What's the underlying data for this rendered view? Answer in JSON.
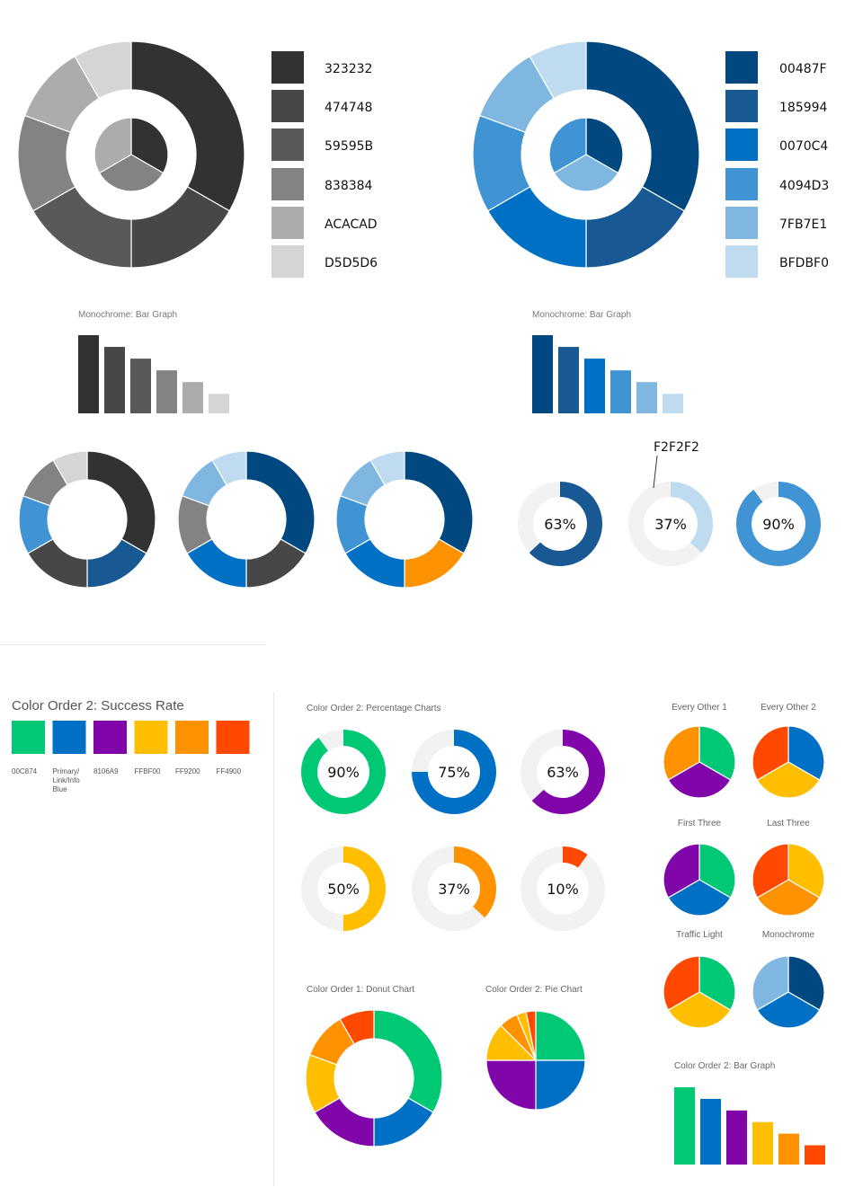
{
  "colors": {
    "c323232": "#323232",
    "c474748": "#474748",
    "c59595B": "#59595B",
    "c838384": "#838384",
    "cACACAD": "#ACACAD",
    "cD5D5D6": "#D5D5D6",
    "c00487F": "#00487F",
    "c185994": "#185994",
    "c0070C4": "#0070C4",
    "c4094D3": "#4094D3",
    "c7FB7E1": "#7FB7E1",
    "cBFDBF0": "#BFDBF0",
    "cF2F2F2": "#F2F2F2",
    "c00C874": "#00C874",
    "c8106A9": "#8106A9",
    "cFFBF00": "#FFBF00",
    "cFF9200": "#FF9200",
    "cFF4900": "#FF4900",
    "orange": "#FF9200"
  },
  "legends": {
    "mono": [
      "323232",
      "474748",
      "59595B",
      "838384",
      "ACACAD",
      "D5D5D6"
    ],
    "blue": [
      "00487F",
      "185994",
      "0070C4",
      "4094D3",
      "7FB7E1",
      "BFDBF0"
    ]
  },
  "labels": {
    "mono_bar": "Monochrome: Bar Graph",
    "blue_bar": "Monochrome: Bar Graph",
    "f2_callout": "F2F2F2",
    "success_title": "Color Order 2: Success Rate",
    "swatches": [
      "00C874",
      "Primary/\nLink/Info\nBlue",
      "8106A9",
      "FFBF00",
      "FF9200",
      "FF4900"
    ],
    "pct_title": "Color Order 2: Percentage Charts",
    "donut_title": "Color Order 1: Donut Chart",
    "pie_title": "Color Order 2: Pie Chart",
    "every_other_1": "Every Other 1",
    "every_other_2": "Every Other 2",
    "first_three": "First Three",
    "last_three": "Last Three",
    "traffic_light": "Traffic Light",
    "monochrome": "Monochrome",
    "bar_title": "Color Order 2: Bar Graph"
  },
  "chart_data": [
    {
      "id": "big-donut-mono",
      "type": "pie",
      "outer": [
        {
          "v": 33.3,
          "c": "#323232"
        },
        {
          "v": 16.7,
          "c": "#474748"
        },
        {
          "v": 16.7,
          "c": "#59595B"
        },
        {
          "v": 13.9,
          "c": "#838384"
        },
        {
          "v": 11.1,
          "c": "#ACACAD"
        },
        {
          "v": 8.3,
          "c": "#D5D5D6"
        }
      ],
      "inner": [
        {
          "v": 33.3,
          "c": "#323232"
        },
        {
          "v": 33.3,
          "c": "#838384"
        },
        {
          "v": 33.3,
          "c": "#ACACAD"
        }
      ]
    },
    {
      "id": "big-donut-blue",
      "type": "pie",
      "outer": [
        {
          "v": 33.3,
          "c": "#00487F"
        },
        {
          "v": 16.7,
          "c": "#185994"
        },
        {
          "v": 16.7,
          "c": "#0070C4"
        },
        {
          "v": 13.9,
          "c": "#4094D3"
        },
        {
          "v": 11.1,
          "c": "#7FB7E1"
        },
        {
          "v": 8.3,
          "c": "#BFDBF0"
        }
      ],
      "inner": [
        {
          "v": 33.3,
          "c": "#00487F"
        },
        {
          "v": 33.3,
          "c": "#7FB7E1"
        },
        {
          "v": 33.3,
          "c": "#4094D3"
        }
      ]
    },
    {
      "id": "mono-bar",
      "type": "bar",
      "title": "Monochrome: Bar Graph",
      "values": [
        6,
        5.1,
        4.2,
        3.3,
        2.4,
        1.5
      ],
      "colors": [
        "#323232",
        "#474748",
        "#59595B",
        "#838384",
        "#ACACAD",
        "#D5D5D6"
      ]
    },
    {
      "id": "blue-bar",
      "type": "bar",
      "title": "Monochrome: Bar Graph",
      "values": [
        6,
        5.1,
        4.2,
        3.3,
        2.4,
        1.5
      ],
      "colors": [
        "#00487F",
        "#185994",
        "#0070C4",
        "#4094D3",
        "#7FB7E1",
        "#BFDBF0"
      ]
    },
    {
      "id": "mid-donut-1",
      "type": "pie",
      "slices": [
        {
          "v": 33.3,
          "c": "#323232"
        },
        {
          "v": 16.7,
          "c": "#185994"
        },
        {
          "v": 16.7,
          "c": "#474748"
        },
        {
          "v": 13.9,
          "c": "#4094D3"
        },
        {
          "v": 11.1,
          "c": "#838384"
        },
        {
          "v": 8.3,
          "c": "#D5D5D6"
        }
      ]
    },
    {
      "id": "mid-donut-2",
      "type": "pie",
      "slices": [
        {
          "v": 33.3,
          "c": "#00487F"
        },
        {
          "v": 16.7,
          "c": "#474748"
        },
        {
          "v": 16.7,
          "c": "#0070C4"
        },
        {
          "v": 13.9,
          "c": "#838384"
        },
        {
          "v": 11.1,
          "c": "#7FB7E1"
        },
        {
          "v": 8.3,
          "c": "#BFDBF0"
        }
      ]
    },
    {
      "id": "mid-donut-3",
      "type": "pie",
      "slices": [
        {
          "v": 33.3,
          "c": "#00487F"
        },
        {
          "v": 16.7,
          "c": "#FF9200"
        },
        {
          "v": 16.7,
          "c": "#0070C4"
        },
        {
          "v": 13.9,
          "c": "#4094D3"
        },
        {
          "v": 11.1,
          "c": "#7FB7E1"
        },
        {
          "v": 8.3,
          "c": "#BFDBF0"
        }
      ]
    },
    {
      "id": "pct-blue-63",
      "type": "pie",
      "percent": 63,
      "label": "63%",
      "color": "#185994"
    },
    {
      "id": "pct-blue-37",
      "type": "pie",
      "percent": 37,
      "label": "37%",
      "color": "#BFDBF0"
    },
    {
      "id": "pct-blue-90",
      "type": "pie",
      "percent": 90,
      "label": "90%",
      "color": "#4094D3"
    },
    {
      "id": "pct-90",
      "type": "pie",
      "percent": 90,
      "label": "90%",
      "color": "#00C874"
    },
    {
      "id": "pct-75",
      "type": "pie",
      "percent": 75,
      "label": "75%",
      "color": "#0070C4"
    },
    {
      "id": "pct-63",
      "type": "pie",
      "percent": 63,
      "label": "63%",
      "color": "#8106A9"
    },
    {
      "id": "pct-50",
      "type": "pie",
      "percent": 50,
      "label": "50%",
      "color": "#FFBF00"
    },
    {
      "id": "pct-37",
      "type": "pie",
      "percent": 37,
      "label": "37%",
      "color": "#FF9200"
    },
    {
      "id": "pct-10",
      "type": "pie",
      "percent": 10,
      "label": "10%",
      "color": "#FF4900"
    },
    {
      "id": "donut-order1",
      "type": "pie",
      "title": "Color Order 1: Donut Chart",
      "slices": [
        {
          "v": 33.3,
          "c": "#00C874"
        },
        {
          "v": 16.7,
          "c": "#0070C4"
        },
        {
          "v": 16.7,
          "c": "#8106A9"
        },
        {
          "v": 13.9,
          "c": "#FFBF00"
        },
        {
          "v": 11.1,
          "c": "#FF9200"
        },
        {
          "v": 8.3,
          "c": "#FF4900"
        }
      ]
    },
    {
      "id": "pie-order2",
      "type": "pie",
      "title": "Color Order 2: Pie Chart",
      "slices": [
        {
          "v": 25,
          "c": "#00C874"
        },
        {
          "v": 25,
          "c": "#0070C4"
        },
        {
          "v": 25,
          "c": "#8106A9"
        },
        {
          "v": 12.5,
          "c": "#FFBF00"
        },
        {
          "v": 6.25,
          "c": "#FF9200"
        },
        {
          "v": 3.125,
          "c": "#FFBF00"
        },
        {
          "v": 3.125,
          "c": "#FF4900"
        }
      ]
    },
    {
      "id": "pie-every-other-1",
      "type": "pie",
      "title": "Every Other 1",
      "slices": [
        {
          "v": 1,
          "c": "#00C874"
        },
        {
          "v": 1,
          "c": "#8106A9"
        },
        {
          "v": 1,
          "c": "#FF9200"
        }
      ]
    },
    {
      "id": "pie-every-other-2",
      "type": "pie",
      "title": "Every Other 2",
      "slices": [
        {
          "v": 1,
          "c": "#0070C4"
        },
        {
          "v": 1,
          "c": "#FFBF00"
        },
        {
          "v": 1,
          "c": "#FF4900"
        }
      ]
    },
    {
      "id": "pie-first-three",
      "type": "pie",
      "title": "First Three",
      "slices": [
        {
          "v": 1,
          "c": "#00C874"
        },
        {
          "v": 1,
          "c": "#0070C4"
        },
        {
          "v": 1,
          "c": "#8106A9"
        }
      ]
    },
    {
      "id": "pie-last-three",
      "type": "pie",
      "title": "Last Three",
      "slices": [
        {
          "v": 1,
          "c": "#FFBF00"
        },
        {
          "v": 1,
          "c": "#FF9200"
        },
        {
          "v": 1,
          "c": "#FF4900"
        }
      ]
    },
    {
      "id": "pie-traffic-light",
      "type": "pie",
      "title": "Traffic Light",
      "slices": [
        {
          "v": 1,
          "c": "#00C874"
        },
        {
          "v": 1,
          "c": "#FFBF00"
        },
        {
          "v": 1,
          "c": "#FF4900"
        }
      ]
    },
    {
      "id": "pie-monochrome",
      "type": "pie",
      "title": "Monochrome",
      "slices": [
        {
          "v": 1,
          "c": "#00487F"
        },
        {
          "v": 1,
          "c": "#0070C4"
        },
        {
          "v": 1,
          "c": "#7FB7E1"
        }
      ]
    },
    {
      "id": "bar-order2",
      "type": "bar",
      "title": "Color Order 2: Bar Graph",
      "values": [
        6,
        5.1,
        4.2,
        3.3,
        2.4,
        1.5
      ],
      "colors": [
        "#00C874",
        "#0070C4",
        "#8106A9",
        "#FFBF00",
        "#FF9200",
        "#FF4900"
      ]
    }
  ]
}
